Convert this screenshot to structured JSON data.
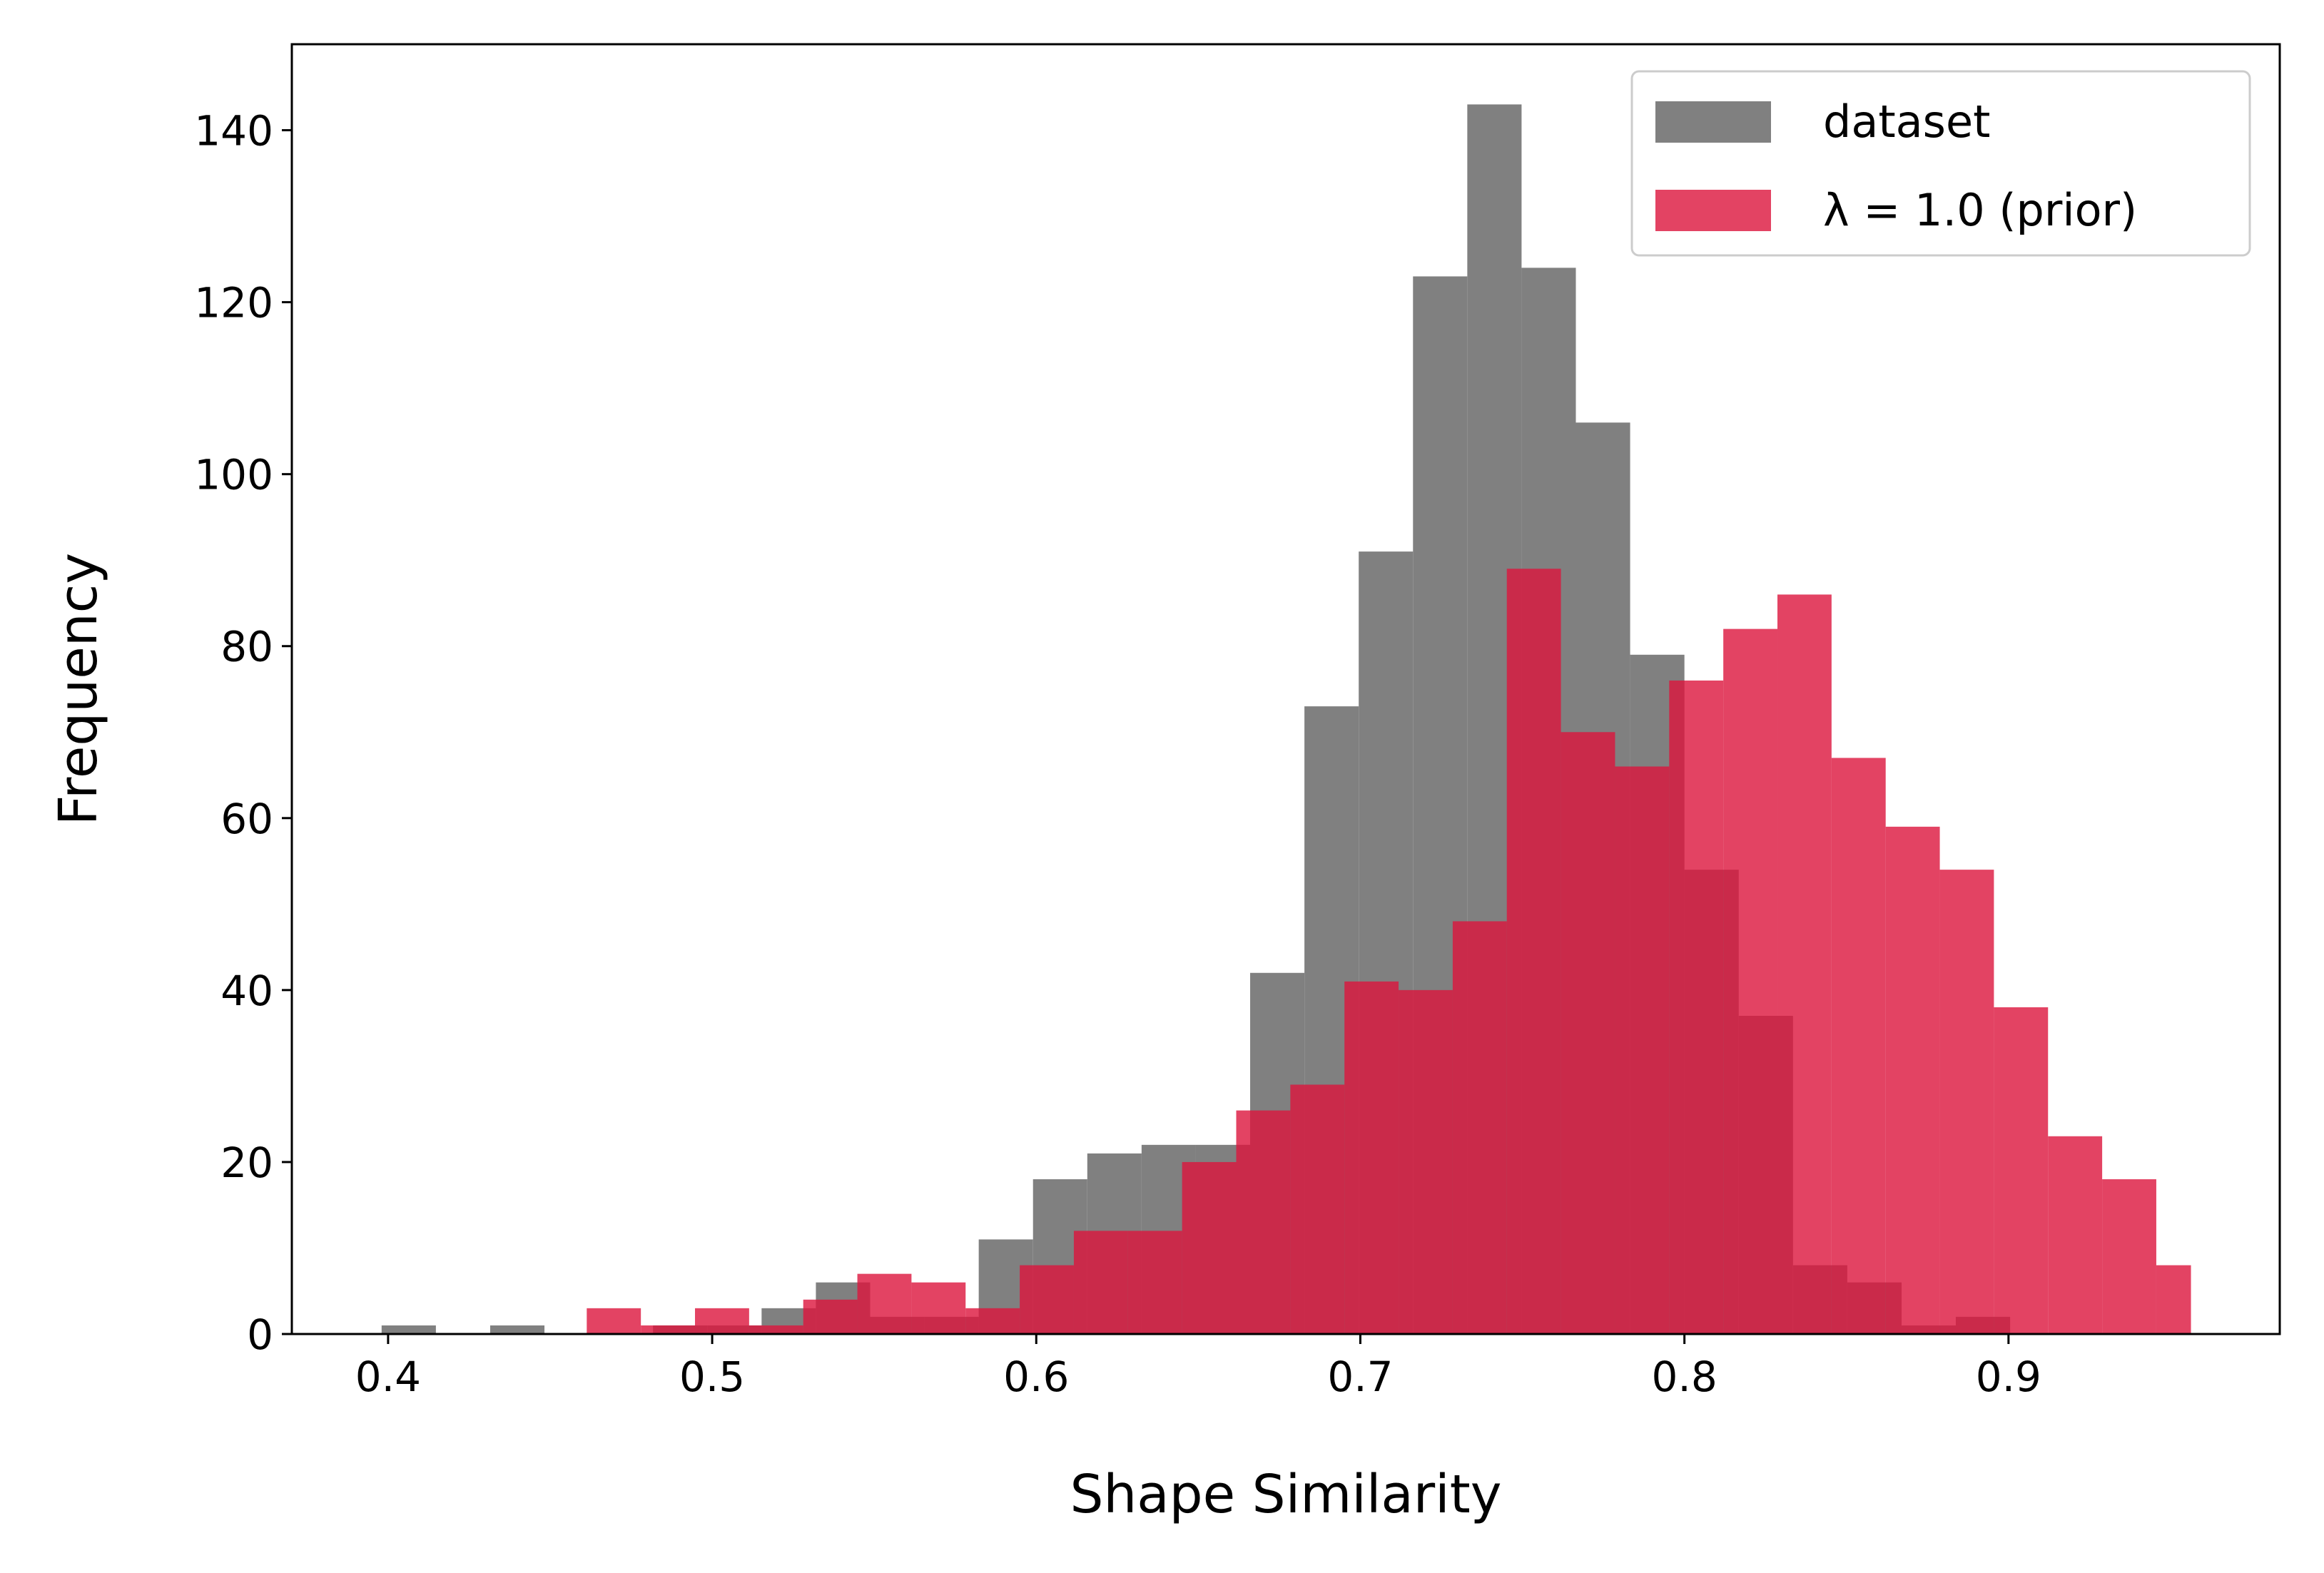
{
  "chart_data": {
    "type": "histogram",
    "xlabel": "Shape Similarity",
    "ylabel": "Frequency",
    "xlim": [
      0.3703,
      0.9837
    ],
    "ylim": [
      0,
      150
    ],
    "xticks": [
      0.4,
      0.5,
      0.6,
      0.7,
      0.8,
      0.9
    ],
    "yticks": [
      0,
      20,
      40,
      60,
      80,
      100,
      120,
      140
    ],
    "legend": "upper right",
    "series": [
      {
        "name": "dataset",
        "color": "#808080",
        "opacity": 1,
        "bins": [
          0.398,
          0.41475,
          0.4315,
          0.44825,
          0.465,
          0.48175,
          0.4985,
          0.51525,
          0.532,
          0.54875,
          0.5655,
          0.58225,
          0.599,
          0.61575,
          0.6325,
          0.64925,
          0.666,
          0.68275,
          0.6995,
          0.71625,
          0.733,
          0.74975,
          0.7665,
          0.78325,
          0.8,
          0.81675,
          0.8335,
          0.85025,
          0.867,
          0.88375,
          0.9005
        ],
        "values": [
          1,
          0,
          1,
          0,
          0,
          1,
          1,
          3,
          6,
          2,
          2,
          11,
          18,
          21,
          22,
          22,
          42,
          73,
          91,
          123,
          143,
          124,
          106,
          79,
          54,
          37,
          8,
          6,
          1,
          2
        ]
      },
      {
        "name": "λ = 1.0 (prior)",
        "color": "#dc143c",
        "opacity": 0.8,
        "bins": [
          0.4613,
          0.478,
          0.4947,
          0.5114,
          0.5281,
          0.5448,
          0.5615,
          0.5782,
          0.5949,
          0.6116,
          0.6283,
          0.645,
          0.6617,
          0.6784,
          0.6951,
          0.7118,
          0.7285,
          0.7452,
          0.7619,
          0.7786,
          0.7953,
          0.812,
          0.8287,
          0.8454,
          0.8621,
          0.8788,
          0.8955,
          0.9122,
          0.9289,
          0.9456,
          0.9563
        ],
        "values": [
          3,
          1,
          3,
          1,
          4,
          7,
          6,
          3,
          8,
          12,
          12,
          20,
          26,
          29,
          41,
          40,
          48,
          89,
          70,
          66,
          76,
          82,
          86,
          67,
          59,
          54,
          38,
          23,
          18,
          8
        ]
      }
    ]
  }
}
